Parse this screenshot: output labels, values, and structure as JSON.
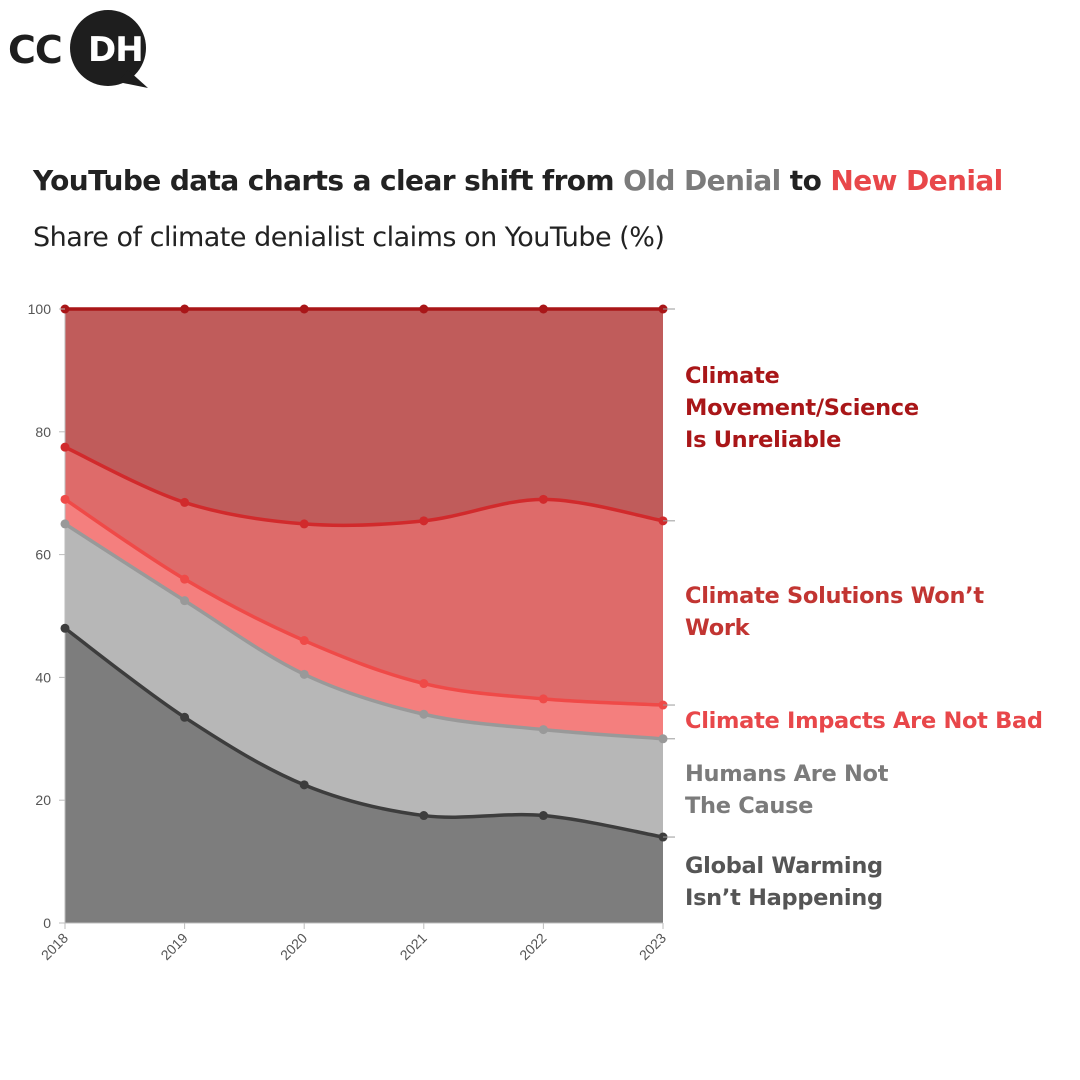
{
  "logo": {
    "left": "CC",
    "right": "DH"
  },
  "header": {
    "title_prefix": "YouTube data charts a clear shift from",
    "title_old": "Old Denial",
    "title_mid": "to",
    "title_new": "New Denial",
    "subtitle": "Share of climate denialist claims on YouTube (%)"
  },
  "chart_data": {
    "type": "area",
    "stacked": true,
    "title": "YouTube data charts a clear shift from Old Denial to New Denial",
    "subtitle": "Share of climate denialist claims on YouTube (%)",
    "x": [
      "2018",
      "2019",
      "2020",
      "2021",
      "2022",
      "2023"
    ],
    "ylim": [
      0,
      100
    ],
    "yticks": [
      0,
      20,
      40,
      60,
      80,
      100
    ],
    "grid": true,
    "legend": "labels at right end of each band",
    "series": [
      {
        "name": "Global Warming Isn’t Happening",
        "label_lines": [
          "Global Warming",
          "Isn’t Happening"
        ],
        "values": [
          48,
          33.5,
          22.5,
          17.5,
          17.5,
          14
        ],
        "cumulative": [
          48,
          33.5,
          22.5,
          17.5,
          17.5,
          14
        ],
        "fill": "#7d7d7d",
        "line": "#3d3d3d",
        "label_color": "#555555"
      },
      {
        "name": "Humans Are Not The Cause",
        "label_lines": [
          "Humans Are Not",
          "The Cause"
        ],
        "values": [
          17,
          19,
          18,
          16.5,
          14,
          16
        ],
        "cumulative": [
          65,
          52.5,
          40.5,
          34,
          31.5,
          30
        ],
        "fill": "#b7b7b7",
        "line": "#999999",
        "label_color": "#7b7b7b"
      },
      {
        "name": "Climate Impacts Are Not Bad",
        "label_lines": [
          "Climate Impacts Are Not Bad"
        ],
        "values": [
          4,
          3.5,
          5.5,
          5,
          5,
          5.5
        ],
        "cumulative": [
          69,
          56,
          46,
          39,
          36.5,
          35.5
        ],
        "fill": "#f47f7e",
        "line": "#ef4a48",
        "label_color": "#e8474a"
      },
      {
        "name": "Climate Solutions Won’t Work",
        "label_lines": [
          "Climate Solutions Won’t",
          "Work"
        ],
        "values": [
          8.5,
          12.5,
          19,
          26.5,
          32.5,
          30
        ],
        "cumulative": [
          77.5,
          68.5,
          65,
          65.5,
          69,
          65.5
        ],
        "fill": "#de6b6a",
        "line": "#d12a2c",
        "label_color": "#c23532"
      },
      {
        "name": "Climate Movement/Science Is Unreliable",
        "label_lines": [
          "Climate",
          "Movement/Science",
          "Is Unreliable"
        ],
        "values": [
          22.5,
          31.5,
          35,
          34.5,
          31,
          34.5
        ],
        "cumulative": [
          100,
          100,
          100,
          100,
          100,
          100
        ],
        "fill": "#c05c5b",
        "line": "#a91618",
        "label_color": "#a91618"
      }
    ]
  }
}
